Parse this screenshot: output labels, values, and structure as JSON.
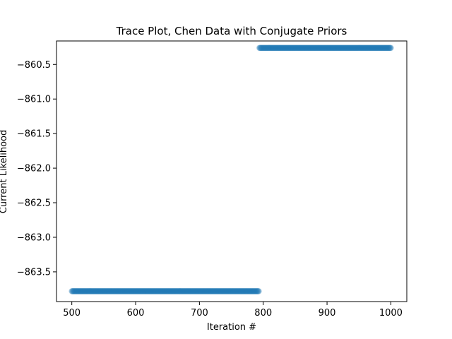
{
  "chart_data": {
    "type": "scatter",
    "title": "Trace Plot, Chen Data with Conjugate Priors",
    "xlabel": "Iteration #",
    "ylabel": "Current Likelihood",
    "xlim": [
      476,
      1025
    ],
    "ylim": [
      -863.93,
      -860.16
    ],
    "xticks": [
      500,
      600,
      700,
      800,
      900,
      1000
    ],
    "yticks": [
      -863.5,
      -863.0,
      -862.5,
      -862.0,
      -861.5,
      -861.0,
      -860.5
    ],
    "xtick_labels": [
      "500",
      "600",
      "700",
      "800",
      "900",
      "1000"
    ],
    "ytick_labels": [
      "−863.5",
      "−863.0",
      "−862.5",
      "−862.0",
      "−861.5",
      "−861.0",
      "−860.5"
    ],
    "grid": false,
    "marker_color": "#1f77b4",
    "series": [
      {
        "iterations": [
          500,
          793
        ],
        "value": -863.78
      },
      {
        "iterations": [
          794,
          1000
        ],
        "value": -860.26
      }
    ]
  }
}
